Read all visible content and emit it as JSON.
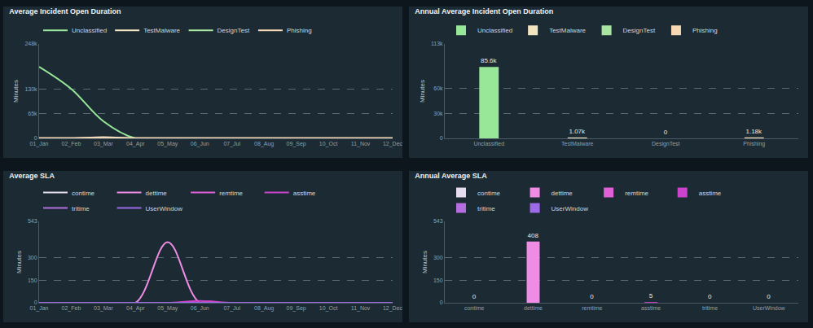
{
  "chart_data": [
    {
      "type": "line",
      "title": "Average Incident Open Duration",
      "y_label": "Minutes",
      "categories": [
        "01_Jan",
        "02_Feb",
        "03_Mar",
        "04_Apr",
        "05_May",
        "06_Jun",
        "07_Jul",
        "08_Aug",
        "09_Sep",
        "10_Oct",
        "11_Nov",
        "12_Dec"
      ],
      "series": [
        {
          "name": "Unclassified",
          "color": "#98e698",
          "values": [
            188000,
            130000,
            45000,
            0,
            0,
            0,
            0,
            0,
            0,
            0,
            0,
            0
          ]
        },
        {
          "name": "TestMalware",
          "color": "#f3e5c0",
          "values": [
            0,
            0,
            3200,
            0,
            0,
            0,
            0,
            0,
            0,
            0,
            0,
            0
          ]
        },
        {
          "name": "DesignTest",
          "color": "#a8e6a0",
          "values": [
            0,
            0,
            0,
            0,
            0,
            0,
            0,
            0,
            0,
            0,
            0,
            0
          ]
        },
        {
          "name": "Phishing",
          "color": "#f6d8b5",
          "values": [
            1200,
            1200,
            1200,
            1100,
            1100,
            1100,
            1200,
            1200,
            1200,
            1200,
            1200,
            1200
          ]
        }
      ],
      "ylim": [
        0,
        248000
      ],
      "yticks": [
        0,
        {
          "value": 65000,
          "label": "65k"
        },
        {
          "value": 130000,
          "label": "130k"
        },
        {
          "value": 248000,
          "label": "248k"
        }
      ],
      "grid": true,
      "legend": "top left",
      "line_style": "smooth"
    },
    {
      "type": "bar",
      "title": "Annual Average Incident Open Duration",
      "y_label": "Minutes",
      "categories": [
        "Unclassified",
        "TestMalware",
        "DesignTest",
        "Phishing"
      ],
      "values": [
        85600,
        1070,
        0,
        1180
      ],
      "value_labels": [
        "85.6k",
        "1.07k",
        "0",
        "1.18k"
      ],
      "colors": [
        "#98e698",
        "#f3e5c0",
        "#a8e6a0",
        "#f6d8b5"
      ],
      "ylim": [
        0,
        113000
      ],
      "yticks": [
        0,
        {
          "value": 30000,
          "label": "30k"
        },
        {
          "value": 60000,
          "label": "60k"
        },
        {
          "value": 113000,
          "label": "113k"
        }
      ],
      "grid": true,
      "legend": "top left",
      "data_labels": true
    },
    {
      "type": "line",
      "title": "Average SLA",
      "y_label": "Minutes",
      "categories": [
        "01_Jan",
        "02_Feb",
        "03_Mar",
        "04_Apr",
        "05_May",
        "06_Jun",
        "07_Jul",
        "08_Aug",
        "09_Sep",
        "10_Oct",
        "11_Nov",
        "12_Dec"
      ],
      "series": [
        {
          "name": "contime",
          "color": "#e6dcf0",
          "values": [
            0,
            0,
            0,
            0,
            0,
            0,
            0,
            0,
            0,
            0,
            0,
            0
          ]
        },
        {
          "name": "dettime",
          "color": "#f08ce6",
          "values": [
            0,
            0,
            0,
            0,
            405,
            0,
            0,
            0,
            0,
            0,
            0,
            0
          ]
        },
        {
          "name": "remtime",
          "color": "#e060d8",
          "values": [
            0,
            0,
            0,
            0,
            0,
            0,
            0,
            0,
            0,
            0,
            0,
            0
          ]
        },
        {
          "name": "asstime",
          "color": "#cc44cc",
          "values": [
            0,
            0,
            0,
            0,
            0,
            12,
            0,
            0,
            0,
            0,
            0,
            0
          ]
        },
        {
          "name": "tritime",
          "color": "#b56ee0",
          "values": [
            0,
            0,
            0,
            0,
            0,
            0,
            0,
            0,
            0,
            0,
            0,
            0
          ]
        },
        {
          "name": "UserWindow",
          "color": "#9b6be8",
          "values": [
            0,
            0,
            0,
            0,
            0,
            0,
            0,
            0,
            0,
            0,
            0,
            0
          ]
        }
      ],
      "ylim": [
        0,
        543
      ],
      "yticks": [
        0,
        150,
        300,
        543
      ],
      "grid": true,
      "legend": "top left",
      "line_style": "smooth"
    },
    {
      "type": "bar",
      "title": "Annual Average SLA",
      "y_label": "Minutes",
      "categories": [
        "contime",
        "dettime",
        "remtime",
        "asstime",
        "tritime",
        "UserWindow"
      ],
      "values": [
        0,
        408,
        0,
        5,
        0,
        0
      ],
      "colors": [
        "#e6dcf0",
        "#f08ce6",
        "#e060d8",
        "#cc44cc",
        "#b56ee0",
        "#9b6be8"
      ],
      "ylim": [
        0,
        543
      ],
      "yticks": [
        0,
        150,
        300,
        543
      ],
      "grid": true,
      "legend": "top left",
      "data_labels": true
    }
  ]
}
